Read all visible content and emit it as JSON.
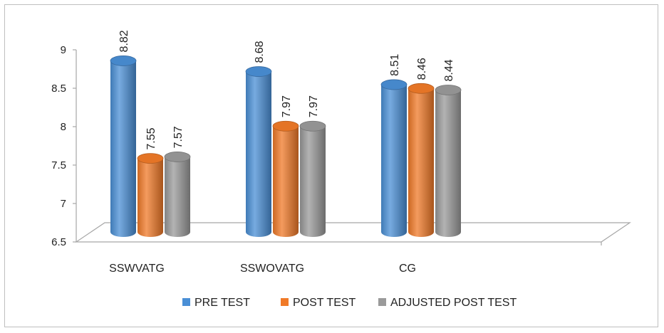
{
  "chart_data": {
    "type": "bar",
    "style": "3d-cylinder",
    "categories": [
      "SSWVATG",
      "SSWOVATG",
      "CG"
    ],
    "series": [
      {
        "name": "PRE TEST",
        "values": [
          8.82,
          8.68,
          8.51
        ],
        "color": "#4a8fd6"
      },
      {
        "name": "POST TEST",
        "values": [
          7.55,
          7.97,
          8.46
        ],
        "color": "#f07a28"
      },
      {
        "name": "ADJUSTED POST TEST",
        "values": [
          7.57,
          7.97,
          8.44
        ],
        "color": "#9a9a9a"
      }
    ],
    "data_labels": [
      [
        "8.82",
        "8.68",
        "8.51"
      ],
      [
        "7.55",
        "7.97",
        "8.46"
      ],
      [
        "7.57",
        "7.97",
        "8.44"
      ]
    ],
    "yticks": [
      "6.5",
      "7",
      "7.5",
      "8",
      "8.5",
      "9"
    ],
    "ylim": [
      6.5,
      9
    ],
    "grid": false,
    "legend_position": "bottom"
  }
}
